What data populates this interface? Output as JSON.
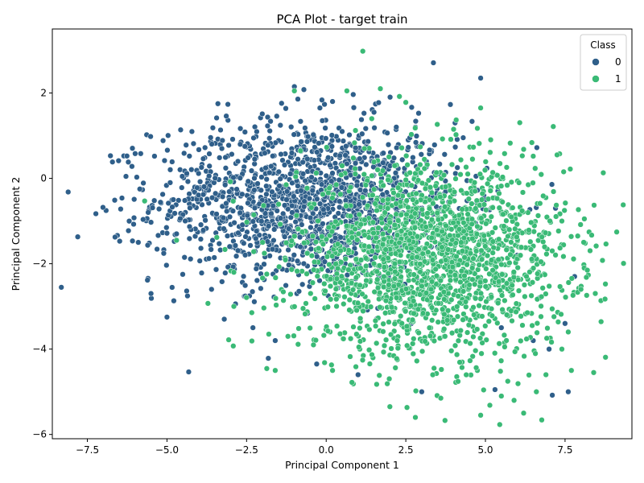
{
  "chart_data": {
    "type": "scatter",
    "title": "PCA Plot - target train",
    "xlabel": "Principal Component 1",
    "ylabel": "Principal Component 2",
    "xlim": [
      -8.6,
      9.6
    ],
    "ylim": [
      -6.1,
      3.5
    ],
    "xticks": [
      -7.5,
      -5.0,
      -2.5,
      0.0,
      2.5,
      5.0,
      7.5
    ],
    "xtick_labels": [
      "−7.5",
      "−5.0",
      "−2.5",
      "0.0",
      "2.5",
      "5.0",
      "7.5"
    ],
    "yticks": [
      -6,
      -4,
      -2,
      0,
      2
    ],
    "ytick_labels": [
      "−6",
      "−4",
      "−2",
      "0",
      "2"
    ],
    "grid": false,
    "legend": {
      "title": "Class",
      "placement": "top-right",
      "entries": [
        {
          "label": "0",
          "color": "#2f5f8a"
        },
        {
          "label": "1",
          "color": "#3aba76"
        }
      ]
    },
    "series": [
      {
        "name": "0",
        "color": "#2f5f8a",
        "cloud": {
          "center": [
            -0.6,
            -0.55
          ],
          "spread": [
            2.4,
            0.95
          ],
          "count": 1500
        },
        "points": [
          [
            -7.8,
            -1.37
          ],
          [
            -6.1,
            0.28
          ],
          [
            -6.0,
            0.58
          ],
          [
            -5.9,
            -1.5
          ],
          [
            -5.0,
            -3.25
          ],
          [
            -4.4,
            0.78
          ],
          [
            -3.4,
            1.75
          ],
          [
            -1.4,
            1.76
          ],
          [
            -1.0,
            2.15
          ],
          [
            -0.7,
            2.08
          ],
          [
            0.2,
            1.8
          ],
          [
            4.85,
            2.35
          ],
          [
            3.9,
            1.73
          ],
          [
            3.0,
            -5.0
          ],
          [
            1.0,
            -4.6
          ],
          [
            7.6,
            -5.0
          ],
          [
            7.1,
            -5.08
          ],
          [
            5.3,
            -4.95
          ],
          [
            7.8,
            -2.3
          ],
          [
            7.2,
            -0.7
          ],
          [
            -1.6,
            -3.8
          ],
          [
            -0.3,
            -4.35
          ],
          [
            -2.3,
            -3.5
          ],
          [
            -3.2,
            -3.3
          ],
          [
            -5.5,
            -2.7
          ],
          [
            5.0,
            -0.5
          ],
          [
            6.0,
            -1.8
          ],
          [
            5.5,
            -3.5
          ],
          [
            6.5,
            -3.8
          ],
          [
            7.0,
            -4.0
          ],
          [
            2.2,
            1.2
          ],
          [
            2.8,
            1.2
          ],
          [
            1.5,
            1.55
          ],
          [
            0.5,
            1.1
          ],
          [
            -4.9,
            -0.1
          ],
          [
            -4.7,
            -1.3
          ],
          [
            -3.6,
            -2.6
          ],
          [
            -2.7,
            0.8
          ],
          [
            6.7,
            -2.8
          ],
          [
            7.5,
            -3.4
          ]
        ]
      },
      {
        "name": "1",
        "color": "#3aba76",
        "cloud": {
          "center": [
            3.3,
            -1.9
          ],
          "spread": [
            2.1,
            1.1
          ],
          "count": 1900
        },
        "points": [
          [
            1.15,
            2.98
          ],
          [
            8.7,
            0.13
          ],
          [
            8.4,
            -4.55
          ],
          [
            2.8,
            -5.6
          ],
          [
            4.85,
            -5.55
          ],
          [
            6.2,
            -5.5
          ],
          [
            5.9,
            -5.2
          ],
          [
            -5.7,
            -0.53
          ],
          [
            -2.9,
            -3.0
          ],
          [
            -1.6,
            -4.5
          ],
          [
            0.65,
            2.05
          ],
          [
            1.7,
            2.1
          ],
          [
            2.3,
            1.92
          ],
          [
            2.5,
            1.78
          ],
          [
            4.85,
            1.65
          ],
          [
            7.25,
            0.55
          ],
          [
            8.1,
            -2.1
          ],
          [
            8.2,
            -2.15
          ],
          [
            7.9,
            -1.35
          ],
          [
            7.6,
            -3.6
          ],
          [
            7.7,
            -4.5
          ],
          [
            6.9,
            -4.6
          ],
          [
            2.0,
            -5.35
          ],
          [
            3.6,
            -5.15
          ],
          [
            5.5,
            -5.1
          ],
          [
            6.6,
            -5.0
          ],
          [
            -4.7,
            -1.45
          ],
          [
            -2.9,
            -2.2
          ],
          [
            -1.0,
            2.05
          ],
          [
            1.2,
            0.7
          ],
          [
            4.0,
            1.15
          ],
          [
            5.6,
            0.58
          ],
          [
            6.2,
            0.68
          ],
          [
            6.5,
            0.52
          ],
          [
            7.4,
            -1.0
          ],
          [
            8.0,
            -2.6
          ],
          [
            7.4,
            -4.0
          ],
          [
            0.2,
            -4.5
          ],
          [
            -0.4,
            -3.9
          ],
          [
            -1.2,
            -3.7
          ]
        ]
      }
    ]
  }
}
